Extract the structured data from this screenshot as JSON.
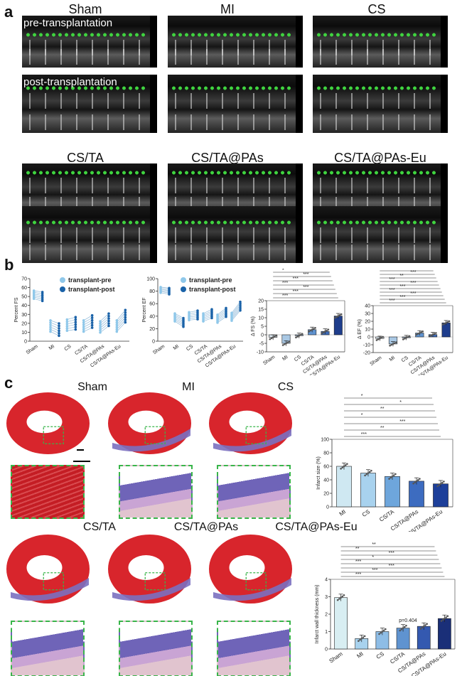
{
  "panel_labels": {
    "a": "a",
    "b": "b",
    "c": "c"
  },
  "echo": {
    "groups": [
      "Sham",
      "MI",
      "CS",
      "CS/TA",
      "CS/TA@PAs",
      "CS/TA@PAs-Eu"
    ],
    "pre_label": "pre-transplantation",
    "post_label": "post-transplantation"
  },
  "histology": {
    "groups": [
      "Sham",
      "MI",
      "CS",
      "CS/TA",
      "CS/TA@PAs",
      "CS/TA@PAs-Eu"
    ]
  },
  "colors": {
    "pre": "#8fc8ea",
    "post": "#1a62a8",
    "dots": "#3fd33f",
    "zoom_border": "#39b54a",
    "bars": [
      "#cfe8f2",
      "#a8d2ee",
      "#6ea6dc",
      "#3d6cc0",
      "#1d3f9a",
      "#142a6e"
    ]
  },
  "chart_data": [
    {
      "type": "line",
      "title": "",
      "ylabel": "Percent FS",
      "ylim": [
        0,
        70
      ],
      "yticks": [
        0,
        10,
        20,
        30,
        40,
        50,
        60,
        70
      ],
      "categories": [
        "Sham",
        "MI",
        "CS",
        "CS/TA",
        "CS/TA@PAs",
        "CS/TA@PAs-Eu"
      ],
      "legend": [
        "transplant-pre",
        "transplant-post"
      ],
      "series": [
        {
          "name": "transplant-pre",
          "values": [
            52,
            17,
            18,
            17,
            16,
            17
          ]
        },
        {
          "name": "transplant-post",
          "values": [
            50,
            13,
            20,
            22,
            24,
            28
          ]
        }
      ]
    },
    {
      "type": "line",
      "title": "",
      "ylabel": "Percent EF",
      "ylim": [
        0,
        100
      ],
      "yticks": [
        0,
        20,
        40,
        60,
        80,
        100
      ],
      "categories": [
        "Sham",
        "MI",
        "CS",
        "CS/TA",
        "CS/TA@PAs",
        "CS/TA@PAs-Eu"
      ],
      "legend": [
        "transplant-pre",
        "transplant-post"
      ],
      "series": [
        {
          "name": "transplant-pre",
          "values": [
            82,
            38,
            40,
            38,
            36,
            39
          ]
        },
        {
          "name": "transplant-post",
          "values": [
            80,
            30,
            42,
            44,
            46,
            56
          ]
        }
      ]
    },
    {
      "type": "bar",
      "title": "",
      "ylabel": "Δ FS (%)",
      "ylim": [
        -10,
        20
      ],
      "yticks": [
        -10,
        -5,
        0,
        5,
        10,
        15,
        20
      ],
      "categories": [
        "Sham",
        "MI",
        "CS",
        "CS/TA",
        "CS/TA@PAs",
        "CS/TA@PAs-Eu"
      ],
      "values": [
        -1.5,
        -5,
        -0.5,
        3,
        2,
        11
      ],
      "significance": [
        "***",
        "***",
        "***",
        "***",
        "***",
        "***",
        "*"
      ]
    },
    {
      "type": "bar",
      "title": "",
      "ylabel": "Δ EF (%)",
      "ylim": [
        -20,
        40
      ],
      "yticks": [
        -20,
        -10,
        0,
        10,
        20,
        30,
        40
      ],
      "categories": [
        "Sham",
        "MI",
        "CS",
        "CS/TA",
        "CS/TA@PAs",
        "CS/TA@PAs-Eu"
      ],
      "values": [
        -2,
        -9,
        -1,
        5,
        3,
        18
      ],
      "significance": [
        "***",
        "***",
        "***",
        "***",
        "***",
        "***",
        "***",
        "**",
        "***",
        "*"
      ]
    },
    {
      "type": "bar",
      "title": "",
      "ylabel": "Infarct size (%)",
      "ylim": [
        0,
        100
      ],
      "yticks": [
        0,
        20,
        40,
        60,
        80,
        100
      ],
      "categories": [
        "MI",
        "CS",
        "CS/TA",
        "CS/TA@PAs",
        "CS/TA@PAs-Eu"
      ],
      "values": [
        60,
        50,
        45,
        38,
        34
      ],
      "significance": [
        "***",
        "**",
        "***",
        "*",
        "**",
        "*",
        "*"
      ]
    },
    {
      "type": "bar",
      "title": "",
      "ylabel": "Infarct wall thickness (mm)",
      "ylim": [
        0,
        4
      ],
      "yticks": [
        0,
        1,
        2,
        3,
        4
      ],
      "categories": [
        "Sham",
        "MI",
        "CS",
        "CS/TA",
        "CS/TA@PAs",
        "CS/TA@PAs-Eu"
      ],
      "values": [
        2.95,
        0.6,
        1.0,
        1.2,
        1.3,
        1.75
      ],
      "significance": [
        "***",
        "***",
        "***",
        "***",
        "*",
        "***",
        "**",
        "**"
      ],
      "annotation": "p=0.404"
    }
  ]
}
